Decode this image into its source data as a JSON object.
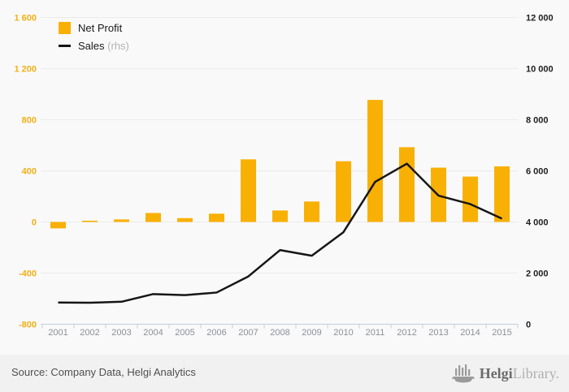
{
  "legend": {
    "net_profit": "Net Profit",
    "sales": "Sales",
    "sales_suffix": "(rhs)"
  },
  "footer": {
    "source": "Source: Company Data, Helgi Analytics",
    "logo_bold": "Helgi",
    "logo_light": "Library."
  },
  "colors": {
    "bar": "#F9B005",
    "line": "#161616",
    "left_label": "#F5AF14",
    "right_label": "#1F1F1F",
    "year_label": "#8C9099",
    "grid": "#EBEBEB",
    "axis": "#C5CEDD",
    "background": "#F9F9F9",
    "footer_bg": "#F1F1F1",
    "logo_gray": "#9A9A9A"
  },
  "chart_data": {
    "type": "bar",
    "categories": [
      "2001",
      "2002",
      "2003",
      "2004",
      "2005",
      "2006",
      "2007",
      "2008",
      "2009",
      "2010",
      "2011",
      "2012",
      "2013",
      "2014",
      "2015"
    ],
    "series": [
      {
        "name": "Net Profit",
        "type": "bar",
        "axis": "left",
        "values": [
          -50,
          10,
          20,
          70,
          30,
          65,
          490,
          90,
          160,
          475,
          955,
          585,
          425,
          355,
          435
        ]
      },
      {
        "name": "Sales",
        "type": "line",
        "axis": "right",
        "values": [
          850,
          840,
          880,
          1180,
          1140,
          1240,
          1870,
          2900,
          2680,
          3600,
          5570,
          6280,
          5030,
          4700,
          4130
        ]
      }
    ],
    "left_axis": {
      "min": -800,
      "max": 1600,
      "step": 400,
      "ticks": [
        "1 600",
        "1 200",
        "800",
        "400",
        "0",
        "-400",
        "-800"
      ]
    },
    "right_axis": {
      "min": 0,
      "max": 12000,
      "step": 2000,
      "ticks": [
        "12 000",
        "10 000",
        "8 000",
        "6 000",
        "4 000",
        "2 000",
        "0"
      ]
    },
    "grid": true,
    "legend_position": "top-left"
  }
}
